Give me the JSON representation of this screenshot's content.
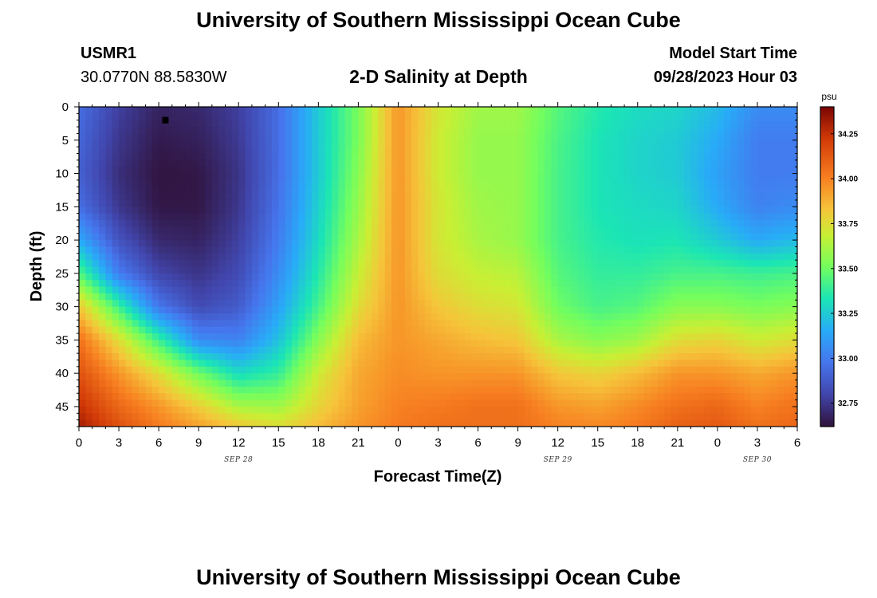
{
  "header": {
    "title": "University of Southern Mississippi Ocean Cube",
    "station": "USMR1",
    "coordinates": "30.0770N  88.5830W",
    "plot_title": "2-D Salinity at Depth",
    "model_start_label": "Model Start Time",
    "model_start_value": "09/28/2023 Hour 03"
  },
  "footer": {
    "title": "University of Southern Mississippi Ocean Cube"
  },
  "chart_data": {
    "type": "heatmap",
    "title": "2-D Salinity at Depth",
    "xlabel": "Forecast Time(Z)",
    "ylabel": "Depth (ft)",
    "x_range_hours": [
      0,
      54
    ],
    "y_range_ft": [
      0,
      48
    ],
    "x_ticks": [
      "0",
      "3",
      "6",
      "9",
      "12",
      "15",
      "18",
      "21",
      "0",
      "3",
      "6",
      "9",
      "12",
      "15",
      "18",
      "21",
      "0",
      "3",
      "6"
    ],
    "y_ticks": [
      "0",
      "5",
      "10",
      "15",
      "20",
      "25",
      "30",
      "35",
      "40",
      "45"
    ],
    "date_labels": [
      {
        "label": "SEP 28",
        "hour": 12
      },
      {
        "label": "SEP 29",
        "hour": 36
      },
      {
        "label": "SEP 30",
        "hour": 51
      }
    ],
    "colorbar": {
      "unit": "psu",
      "range": [
        32.62,
        34.4
      ],
      "ticks": [
        "32.75",
        "33.00",
        "33.25",
        "33.50",
        "33.75",
        "34.00",
        "34.25"
      ]
    },
    "marker": {
      "hour": 6.5,
      "depth_ft": 2
    },
    "grid": {
      "hours": [
        0,
        3,
        6,
        9,
        12,
        15,
        18,
        21,
        24,
        27,
        30,
        33,
        36,
        39,
        42,
        45,
        48,
        51,
        54
      ],
      "depths_ft": [
        0,
        5,
        10,
        15,
        20,
        25,
        30,
        35,
        40,
        45,
        48
      ],
      "salinity_psu": [
        [
          32.95,
          32.78,
          32.68,
          32.7,
          32.78,
          32.95,
          33.25,
          33.52,
          33.95,
          33.72,
          33.6,
          33.6,
          33.45,
          33.35,
          33.3,
          33.28,
          33.2,
          33.05,
          33.05
        ],
        [
          32.92,
          32.75,
          32.65,
          32.67,
          32.76,
          32.95,
          33.25,
          33.52,
          33.95,
          33.7,
          33.58,
          33.58,
          33.43,
          33.33,
          33.28,
          33.25,
          33.15,
          33.0,
          33.0
        ],
        [
          32.9,
          32.72,
          32.63,
          32.64,
          32.74,
          32.95,
          33.25,
          33.55,
          33.95,
          33.7,
          33.58,
          33.58,
          33.42,
          33.33,
          33.28,
          33.25,
          33.12,
          33.0,
          33.0
        ],
        [
          32.95,
          32.75,
          32.64,
          32.64,
          32.75,
          32.97,
          33.27,
          33.58,
          33.95,
          33.72,
          33.6,
          33.58,
          33.42,
          33.33,
          33.3,
          33.28,
          33.15,
          33.02,
          33.05
        ],
        [
          33.15,
          32.85,
          32.7,
          32.68,
          32.78,
          33.0,
          33.3,
          33.62,
          33.95,
          33.72,
          33.62,
          33.58,
          33.42,
          33.35,
          33.32,
          33.33,
          33.25,
          33.15,
          33.2
        ],
        [
          33.45,
          33.0,
          32.8,
          32.74,
          32.82,
          33.05,
          33.35,
          33.68,
          33.95,
          33.75,
          33.68,
          33.65,
          33.45,
          33.38,
          33.38,
          33.42,
          33.42,
          33.4,
          33.42
        ],
        [
          33.82,
          33.4,
          32.98,
          32.82,
          32.88,
          33.12,
          33.42,
          33.75,
          33.95,
          33.82,
          33.75,
          33.72,
          33.5,
          33.42,
          33.45,
          33.55,
          33.55,
          33.52,
          33.55
        ],
        [
          34.05,
          33.75,
          33.4,
          33.05,
          33.02,
          33.22,
          33.55,
          33.85,
          33.95,
          33.9,
          33.85,
          33.82,
          33.62,
          33.55,
          33.6,
          33.75,
          33.78,
          33.7,
          33.75
        ],
        [
          34.15,
          33.95,
          33.75,
          33.5,
          33.3,
          33.38,
          33.7,
          33.9,
          33.97,
          33.95,
          33.95,
          33.95,
          33.82,
          33.78,
          33.85,
          33.95,
          33.95,
          33.9,
          33.95
        ],
        [
          34.25,
          34.08,
          33.95,
          33.8,
          33.62,
          33.6,
          33.78,
          33.92,
          34.0,
          34.02,
          34.05,
          34.05,
          33.95,
          33.92,
          33.98,
          34.05,
          34.08,
          34.0,
          34.05
        ],
        [
          34.32,
          34.15,
          34.02,
          33.92,
          33.82,
          33.75,
          33.85,
          33.95,
          34.02,
          34.05,
          34.05,
          34.05,
          34.0,
          33.98,
          34.02,
          34.1,
          34.12,
          34.05,
          34.08
        ]
      ]
    }
  }
}
